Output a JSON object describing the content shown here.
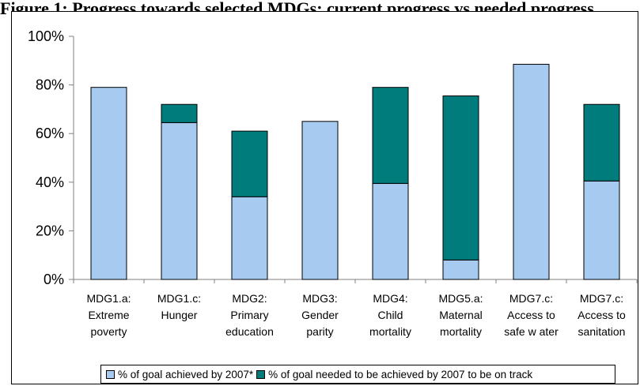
{
  "title": "Figure 1: Progress towards selected MDGs: current progress vs needed progress",
  "colors": {
    "achieved": "#a6caf0",
    "needed": "#007c7c",
    "axis": "#808080"
  },
  "chart_data": {
    "type": "bar",
    "stacked": true,
    "categories": [
      [
        "MDG1.a:",
        "Extreme",
        "poverty"
      ],
      [
        "MDG1.c:",
        "Hunger"
      ],
      [
        "MDG2:",
        "Primary",
        "education"
      ],
      [
        "MDG3:",
        "Gender",
        "parity"
      ],
      [
        "MDG4:",
        "Child",
        "mortality"
      ],
      [
        "MDG5.a:",
        "Maternal",
        "mortality"
      ],
      [
        "MDG7.c:",
        "Access to",
        "safe w ater"
      ],
      [
        "MDG7.c:",
        "Access to",
        "sanitation"
      ]
    ],
    "series": [
      {
        "name": "% of goal achieved by 2007*",
        "values": [
          79,
          64.5,
          34,
          65,
          39.5,
          8,
          88.5,
          40.5
        ]
      },
      {
        "name": "% of goal needed to be achieved by 2007 to be on track",
        "values": [
          0,
          7.5,
          27,
          0,
          39.5,
          67.5,
          0,
          31.5
        ]
      }
    ],
    "ylim": [
      0,
      100
    ],
    "yticks": [
      "0%",
      "20%",
      "40%",
      "60%",
      "80%",
      "100%"
    ],
    "grid": false,
    "legend_position": "bottom"
  }
}
